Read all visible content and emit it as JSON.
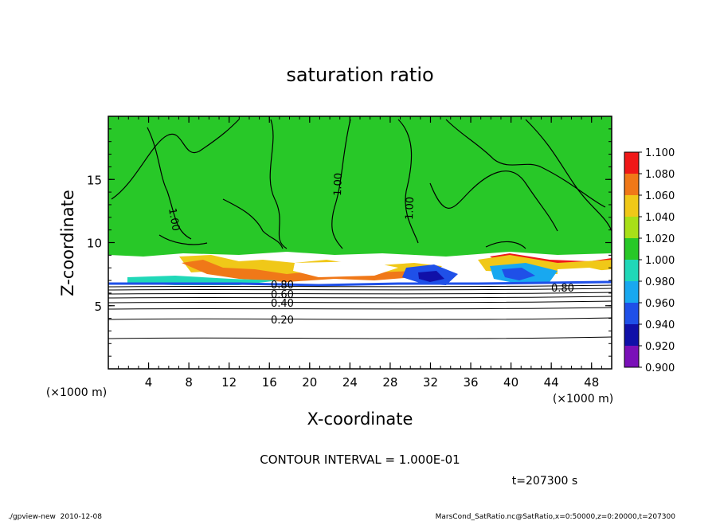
{
  "chart_data": {
    "type": "heatmap",
    "title": "saturation ratio",
    "xlabel": "X-coordinate",
    "ylabel": "Z-coordinate",
    "x_unit": "(×1000 m)",
    "y_unit": "(×1000 m)",
    "xlim": [
      0,
      50
    ],
    "ylim": [
      0,
      20
    ],
    "x_ticks": [
      "4",
      "8",
      "12",
      "16",
      "20",
      "24",
      "28",
      "32",
      "36",
      "40",
      "44",
      "48"
    ],
    "y_ticks": [
      "5",
      "10",
      "15"
    ],
    "colorbar": {
      "levels": [
        "0.900",
        "0.920",
        "0.940",
        "0.960",
        "0.980",
        "1.000",
        "1.020",
        "1.040",
        "1.060",
        "1.080",
        "1.100"
      ],
      "colors": [
        "#7a10b8",
        "#1010a8",
        "#1f50e8",
        "#18a8f0",
        "#20d8b8",
        "#28c828",
        "#a8e018",
        "#f0c818",
        "#f07818",
        "#f01818",
        "#f8a0a0"
      ]
    },
    "contour_labels": [
      "1.00",
      "1.00",
      "1.00",
      "0.80",
      "0.80",
      "0.60",
      "0.40",
      "0.20"
    ],
    "contour_interval_text": "CONTOUR INTERVAL = 1.000E-01",
    "time_text": "t=207300 s",
    "footer_left": "./gpview-new  2010-12-08",
    "footer_right": "MarsCond_SatRatio.nc@SatRatio,x=0:50000,z=0:20000,t=207300"
  }
}
